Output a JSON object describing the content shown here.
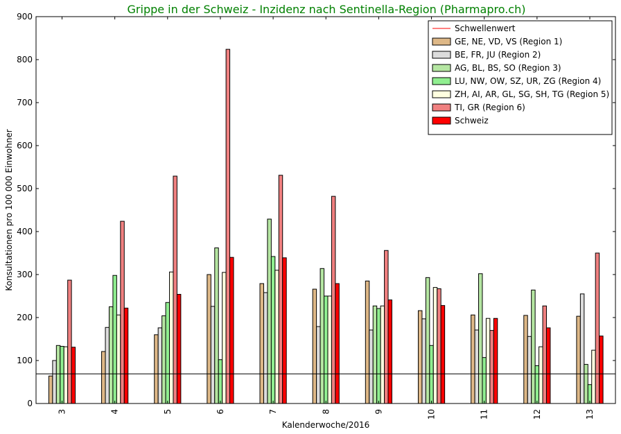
{
  "chart_data": {
    "type": "bar",
    "title": "Grippe in der Schweiz - Inzidenz nach Sentinella-Region (Pharmapro.ch)",
    "xlabel": "Kalenderwoche/2016",
    "ylabel": "Konsultationen pro 100 000 Einwohner",
    "ylim": [
      0,
      900
    ],
    "yticks": [
      0,
      100,
      200,
      300,
      400,
      500,
      600,
      700,
      800,
      900
    ],
    "categories": [
      "3",
      "4",
      "5",
      "6",
      "7",
      "8",
      "9",
      "10",
      "11",
      "12",
      "13"
    ],
    "threshold": {
      "name": "Schwellenwert",
      "value": 69,
      "color": "#ff0000"
    },
    "legend_position": "top-right",
    "series": [
      {
        "name": "GE, NE, VD, VS (Region 1)",
        "color": "#deb887",
        "values": [
          64,
          121,
          160,
          300,
          279,
          266,
          285,
          216,
          206,
          205,
          203
        ]
      },
      {
        "name": "BE, FR, JU (Region 2)",
        "color": "#dcdcdc",
        "values": [
          100,
          177,
          176,
          226,
          258,
          179,
          171,
          197,
          171,
          156,
          255
        ]
      },
      {
        "name": "AG, BL, BS, SO (Region 3)",
        "color": "#b5e6a2",
        "values": [
          135,
          225,
          204,
          362,
          429,
          314,
          227,
          293,
          302,
          264,
          91
        ]
      },
      {
        "name": "LU, NW, OW, SZ, UR, ZG (Region 4)",
        "color": "#90ee90",
        "values": [
          133,
          298,
          235,
          102,
          342,
          250,
          221,
          135,
          107,
          88,
          44
        ]
      },
      {
        "name": "ZH, AI, AR, GL, SG, SH, TG (Region 5)",
        "color": "#ffffe0",
        "values": [
          132,
          206,
          306,
          305,
          310,
          250,
          227,
          270,
          198,
          132,
          124
        ]
      },
      {
        "name": "TI, GR (Region 6)",
        "color": "#f08080",
        "values": [
          287,
          424,
          529,
          824,
          531,
          482,
          356,
          267,
          170,
          227,
          350
        ]
      },
      {
        "name": "Schweiz",
        "color": "#ff0000",
        "values": [
          131,
          222,
          254,
          340,
          339,
          279,
          241,
          228,
          198,
          176,
          157
        ]
      }
    ]
  }
}
